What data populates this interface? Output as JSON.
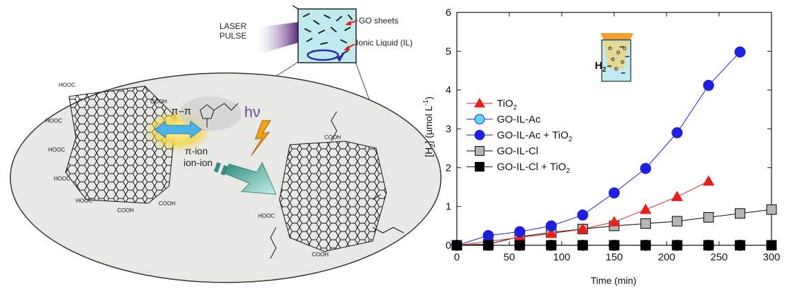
{
  "scheme": {
    "laser_label_line1": "LASER",
    "laser_label_line2": "PULSE",
    "go_sheets_label": "GO sheets",
    "ionic_liquid_label": "Ionic Liquid (IL)",
    "hv_label": "hν",
    "pi_pi_label": "π–π",
    "pi_ion_label": "π-ion",
    "ion_ion_label": "ion-ion",
    "cooh_label": "COOH",
    "hooc_label": "HOOC"
  },
  "colors": {
    "tio2": "#e8201a",
    "go_il_ac_fill": "#5bd8f0",
    "go_il_ac_tio2": "#1f1fe0",
    "go_il_cl": "#b5b5b5",
    "go_il_cl_tio2": "#000000",
    "ellipse_fill": "#e8e8e4",
    "laser": "#6a3a8a",
    "beaker_liquid": "#bfeaf0"
  },
  "chart_data": {
    "type": "line",
    "ylabel": "[H2] (µmol L-1)",
    "ylabel_main": "[H",
    "ylabel_sub": "2",
    "ylabel_rest": "] (µmol L",
    "ylabel_sup": "-1",
    "ylabel_close": ")",
    "xlabel": "Time (min)",
    "xlim": [
      0,
      300
    ],
    "ylim": [
      0,
      6
    ],
    "xticks": [
      0,
      50,
      100,
      150,
      200,
      250,
      300
    ],
    "yticks": [
      0,
      1,
      2,
      3,
      4,
      5,
      6
    ],
    "legend_position": "left",
    "series": [
      {
        "name": "TiO2",
        "name_main": "TiO",
        "name_sub": "2",
        "marker": "triangle",
        "color": "#e8201a",
        "fill": "#e8201a",
        "x": [
          0,
          30,
          60,
          90,
          120,
          150,
          180,
          210,
          240
        ],
        "y": [
          0.0,
          0.1,
          0.2,
          0.3,
          0.42,
          0.6,
          0.92,
          1.25,
          1.65
        ]
      },
      {
        "name": "GO-IL-Ac",
        "name_main": "GO-IL-Ac",
        "name_sub": "",
        "marker": "circle",
        "color": "#1f1fe0",
        "fill": "#5bd8f0",
        "x": [
          0,
          30,
          60,
          90,
          120,
          150,
          180,
          210,
          240,
          270
        ],
        "y": [
          0,
          0,
          0,
          0,
          0,
          0,
          0,
          0,
          0,
          0
        ]
      },
      {
        "name": "GO-IL-Ac + TiO2",
        "name_main": "GO-IL-Ac + TiO",
        "name_sub": "2",
        "marker": "circle",
        "color": "#1f1fe0",
        "fill": "#1f1fe0",
        "x": [
          0,
          30,
          60,
          90,
          120,
          150,
          180,
          210,
          240,
          270
        ],
        "y": [
          0.0,
          0.25,
          0.35,
          0.5,
          0.78,
          1.35,
          1.98,
          2.9,
          4.12,
          4.98
        ]
      },
      {
        "name": "GO-IL-Cl",
        "name_main": "GO-IL-Cl",
        "name_sub": "",
        "marker": "square",
        "color": "#000000",
        "fill": "#b5b5b5",
        "x": [
          0,
          30,
          60,
          90,
          120,
          150,
          180,
          210,
          240,
          270,
          300
        ],
        "y": [
          0.0,
          0.03,
          0.22,
          0.33,
          0.42,
          0.5,
          0.56,
          0.62,
          0.72,
          0.82,
          0.92
        ]
      },
      {
        "name": "GO-IL-Cl + TiO2",
        "name_main": "GO-IL-Cl + TiO",
        "name_sub": "2",
        "marker": "square",
        "color": "#000000",
        "fill": "#000000",
        "x": [
          0,
          30,
          60,
          90,
          120,
          150,
          180,
          210,
          240,
          270,
          300
        ],
        "y": [
          0,
          0,
          0,
          0,
          0,
          0,
          0,
          0,
          0,
          0,
          0
        ]
      }
    ],
    "inset": {
      "label_main": "H",
      "label_sub": "2"
    }
  }
}
